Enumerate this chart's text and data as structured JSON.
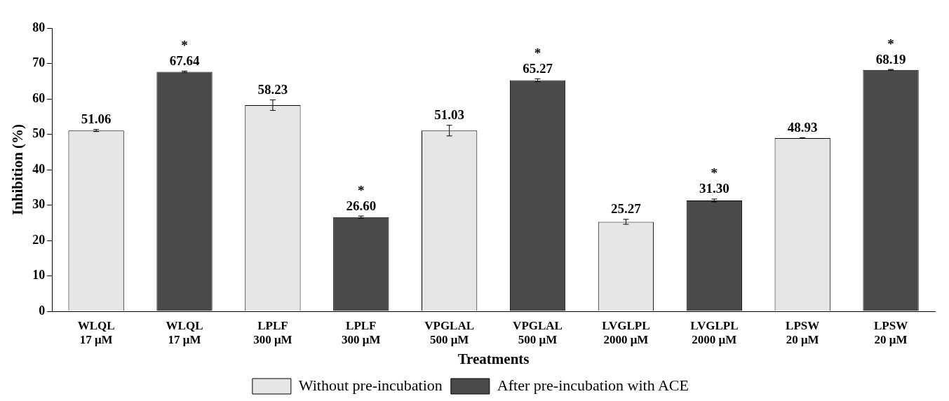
{
  "chart_data": {
    "type": "bar",
    "xlabel": "Treatments",
    "ylabel": "Inhibition (%)",
    "categories": [
      "WLQL\n17 μM",
      "WLQL\n17 μM",
      "LPLF\n300 μM",
      "LPLF\n300 μM",
      "VPGLAL\n500 μM",
      "VPGLAL\n500 μM",
      "LVGLPL\n2000 μM",
      "LVGLPL\n2000 μM",
      "LPSW\n20 μM",
      "LPSW\n20 μM"
    ],
    "series": [
      {
        "name": "Without pre-incubation",
        "color": "#e6e6e6",
        "values": [
          51.06,
          null,
          58.23,
          null,
          51.03,
          null,
          25.27,
          null,
          48.93,
          null
        ],
        "errors": [
          0.3,
          null,
          1.5,
          null,
          1.5,
          null,
          0.7,
          null,
          0.1,
          null
        ],
        "value_labels": [
          "51.06",
          null,
          "58.23",
          null,
          "51.03",
          null,
          "25.27",
          null,
          "48.93",
          null
        ]
      },
      {
        "name": "After pre-incubation with ACE",
        "color": "#4a4a4a",
        "values": [
          null,
          67.64,
          null,
          26.6,
          null,
          65.27,
          null,
          31.3,
          null,
          68.19
        ],
        "errors": [
          null,
          0.2,
          null,
          0.3,
          null,
          0.4,
          null,
          0.4,
          null,
          0.1
        ],
        "value_labels": [
          null,
          "*\n67.64",
          null,
          "*\n26.60",
          null,
          "*\n65.27",
          null,
          "*\n31.30",
          null,
          "*\n68.19"
        ]
      }
    ],
    "ylim": [
      0,
      80
    ],
    "yticks": [
      0,
      10,
      20,
      30,
      40,
      50,
      60,
      70,
      80
    ],
    "grid": false,
    "legend": "bottom"
  }
}
